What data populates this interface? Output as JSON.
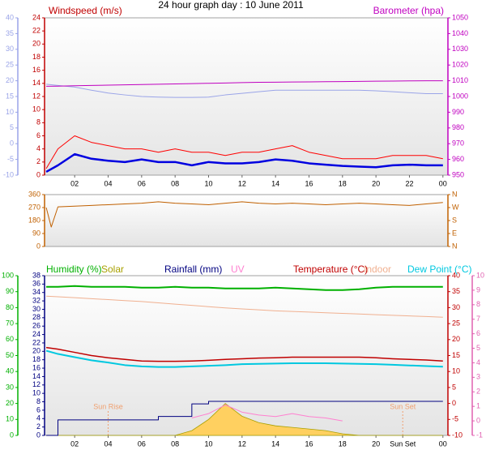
{
  "chart_data": [
    {
      "type": "line",
      "title": "24 hour graph day : 10 June 2011",
      "xlim": [
        0.2,
        24.3
      ],
      "xticks": [
        {
          "value": 2,
          "label": "02"
        },
        {
          "value": 4,
          "label": "04"
        },
        {
          "value": 6,
          "label": "06"
        },
        {
          "value": 8,
          "label": "08"
        },
        10,
        12,
        14,
        16,
        18,
        20,
        22,
        {
          "value": 24,
          "label": "00"
        }
      ],
      "x": [
        0.3,
        1,
        2,
        3,
        4,
        5,
        6,
        7,
        8,
        9,
        10,
        11,
        12,
        13,
        14,
        15,
        16,
        17,
        18,
        19,
        20,
        21,
        22,
        23,
        24
      ],
      "axes": [
        {
          "label": "Windspeed (m/s)",
          "color": "#c00000",
          "lim": [
            0,
            24
          ],
          "ticks": [
            0,
            2,
            4,
            6,
            8,
            10,
            12,
            14,
            16,
            18,
            20,
            22,
            24
          ]
        },
        {
          "color": "#9aa4e8",
          "lim": [
            -10,
            40
          ],
          "ticks": [
            -10,
            -5,
            0,
            5,
            10,
            15,
            20,
            25,
            30,
            35,
            40
          ]
        },
        {
          "label": "Barometer (hpa)",
          "color": "#c000c0",
          "lim": [
            950,
            1050
          ],
          "ticks": [
            950,
            960,
            970,
            980,
            990,
            1000,
            1010,
            1020,
            1030,
            1040,
            1050
          ]
        }
      ],
      "series": [
        {
          "color": "#9aa4e8",
          "axis": 1,
          "values": [
            18.9,
            18.5,
            18,
            17,
            16.1,
            15.5,
            15,
            14.8,
            14.7,
            14.7,
            14.8,
            15.5,
            16,
            16.5,
            17,
            17,
            17,
            17,
            17,
            17,
            16.8,
            16.5,
            16.2,
            15.9,
            15.9
          ]
        },
        {
          "color": "#c000c0",
          "axis": 2,
          "values": [
            1006.5,
            1006.6,
            1006.8,
            1007,
            1007.2,
            1007.4,
            1007.6,
            1007.8,
            1008,
            1008.2,
            1008.4,
            1008.6,
            1008.8,
            1009,
            1009.1,
            1009.2,
            1009.3,
            1009.4,
            1009.5,
            1009.6,
            1009.7,
            1009.8,
            1009.9,
            1010,
            1010
          ]
        },
        {
          "color": "#ff0000",
          "axis": 0,
          "values": [
            1,
            4,
            6,
            5,
            4.5,
            4,
            4,
            3.5,
            4,
            3.5,
            3.5,
            3,
            3.5,
            3.5,
            4,
            4.5,
            3.5,
            3,
            2.5,
            2.5,
            2.5,
            3,
            3,
            3,
            2.5
          ]
        },
        {
          "color": "#0000e0",
          "axis": 0,
          "width": 2.5,
          "values": [
            0.5,
            1.5,
            3.2,
            2.5,
            2.2,
            2,
            2.4,
            2,
            2,
            1.5,
            2,
            1.8,
            1.8,
            2,
            2.4,
            2.2,
            1.8,
            1.6,
            1.4,
            1.3,
            1.2,
            1.5,
            1.6,
            1.5,
            1.5
          ]
        }
      ]
    },
    {
      "type": "line",
      "xlim": [
        0.2,
        24.3
      ],
      "x": [
        0.3,
        0.6,
        1,
        2,
        3,
        4,
        5,
        6,
        7,
        8,
        9,
        10,
        11,
        12,
        13,
        14,
        15,
        16,
        17,
        18,
        19,
        20,
        21,
        22,
        23,
        24
      ],
      "axes": [
        {
          "color": "#c06000",
          "lim": [
            0,
            360
          ],
          "ticks": [
            0,
            90,
            180,
            270,
            360
          ]
        },
        {
          "color": "#c06000",
          "lim": [
            0,
            360
          ],
          "ticks": [
            {
              "value": 0,
              "label": "N"
            },
            {
              "value": 90,
              "label": "E"
            },
            {
              "value": 180,
              "label": "S"
            },
            {
              "value": 270,
              "label": "W"
            },
            {
              "value": 360,
              "label": "N"
            }
          ]
        }
      ],
      "series": [
        {
          "color": "#c06000",
          "axis": 0,
          "values": [
            270,
            135,
            275,
            280,
            285,
            290,
            295,
            300,
            310,
            300,
            295,
            290,
            300,
            310,
            300,
            295,
            300,
            295,
            290,
            295,
            300,
            295,
            290,
            285,
            295,
            305
          ]
        }
      ]
    },
    {
      "type": "line",
      "xlim": [
        0.2,
        24.3
      ],
      "xticks": [
        {
          "value": 2,
          "label": "02"
        },
        {
          "value": 4,
          "label": "04"
        },
        {
          "value": 6,
          "label": "06"
        },
        {
          "value": 8,
          "label": "08"
        },
        10,
        12,
        14,
        16,
        18,
        20,
        {
          "value": 21.6,
          "label": "Sun Set"
        },
        {
          "value": 24,
          "label": "00"
        }
      ],
      "x": [
        0.3,
        1,
        2,
        3,
        4,
        5,
        6,
        7,
        8,
        9,
        10,
        11,
        12,
        13,
        14,
        15,
        16,
        17,
        18,
        19,
        20,
        21,
        22,
        23,
        24
      ],
      "annotations": [
        {
          "text": "Sun Rise",
          "x": 4.0
        },
        {
          "text": "Sun Set",
          "x": 21.6
        }
      ],
      "annotation_color": "#f0a070",
      "axes": [
        {
          "color": "#000080",
          "lim": [
            0,
            38
          ],
          "ticks": [
            0,
            2,
            4,
            6,
            8,
            10,
            12,
            14,
            16,
            18,
            20,
            22,
            24,
            26,
            28,
            30,
            32,
            34,
            36,
            38
          ]
        },
        {
          "color": "#00b000",
          "lim": [
            0,
            100
          ],
          "ticks": [
            0,
            10,
            20,
            30,
            40,
            50,
            60,
            70,
            80,
            90,
            100
          ]
        },
        {
          "color": "#c00000",
          "lim": [
            -10,
            40
          ],
          "ticks": [
            -10,
            -5,
            0,
            5,
            10,
            15,
            20,
            25,
            30,
            35,
            40
          ]
        },
        {
          "color": "#e060b0",
          "lim": [
            -1,
            10
          ],
          "ticks": [
            -1,
            0,
            1,
            2,
            3,
            4,
            5,
            6,
            7,
            8,
            9,
            10
          ]
        }
      ],
      "series": [
        {
          "name": "Humidity (%)",
          "color": "#00b000",
          "axis": 1,
          "width": 2,
          "values": [
            93,
            93,
            93.5,
            93,
            93,
            93,
            92.5,
            92.5,
            93,
            92.5,
            92.5,
            92,
            92,
            92,
            92.5,
            92,
            91.5,
            91,
            91,
            91.5,
            92.5,
            93,
            93,
            93,
            93
          ]
        },
        {
          "name": "Solar",
          "color": "#a8a000",
          "fill": "#ffd060",
          "axis": 1,
          "area": true,
          "values": [
            0,
            0,
            0,
            0,
            0,
            0,
            0,
            0,
            0,
            3,
            10,
            20,
            12,
            8,
            6,
            5,
            4,
            3,
            1,
            0,
            0,
            0,
            0,
            0,
            0
          ]
        },
        {
          "name": "Rainfall (mm)",
          "color": "#000080",
          "axis": 0,
          "step": true,
          "values": [
            0,
            3.7,
            3.7,
            3.7,
            3.7,
            3.7,
            3.7,
            4.5,
            4.5,
            7.5,
            8.1,
            8.1,
            8.1,
            8.1,
            8.1,
            8.1,
            8.1,
            8.1,
            8.1,
            8.1,
            8.1,
            8.1,
            8.1,
            8.1,
            8.1
          ]
        },
        {
          "name": "UV",
          "color": "#ff80d0",
          "axis": 3,
          "values": [
            null,
            null,
            null,
            null,
            null,
            null,
            null,
            null,
            null,
            0.2,
            0.5,
            1.1,
            0.6,
            0.4,
            0.3,
            0.5,
            0.3,
            0.2,
            0,
            null,
            null,
            null,
            null,
            null,
            null
          ]
        },
        {
          "name": "Temperature (°C)",
          "color": "#c00000",
          "axis": 2,
          "width": 1.5,
          "values": [
            17.5,
            17,
            16,
            15,
            14.3,
            13.8,
            13.3,
            13.2,
            13.2,
            13.3,
            13.5,
            13.8,
            14,
            14.2,
            14.3,
            14.5,
            14.5,
            14.5,
            14.5,
            14.5,
            14.3,
            14,
            13.8,
            13.6,
            13.3
          ]
        },
        {
          "name": "Indoor",
          "color": "#f0b090",
          "axis": 2,
          "values": [
            33.6,
            33.4,
            33.1,
            32.8,
            32.5,
            32.2,
            31.9,
            31.5,
            31.1,
            30.7,
            30.3,
            29.9,
            29.6,
            29.3,
            29.0,
            28.8,
            28.6,
            28.4,
            28.2,
            28.0,
            27.8,
            27.6,
            27.4,
            27.2,
            27.0
          ]
        },
        {
          "name": "Dew Point (°C)",
          "color": "#00c8e0",
          "axis": 2,
          "width": 2,
          "values": [
            16.5,
            15.5,
            14.5,
            13.5,
            12.8,
            12,
            11.6,
            11.4,
            11.4,
            11.6,
            11.8,
            12,
            12.3,
            12.4,
            12.5,
            12.6,
            12.6,
            12.6,
            12.5,
            12.4,
            12.3,
            12.1,
            11.9,
            11.7,
            11.5
          ]
        }
      ]
    }
  ]
}
